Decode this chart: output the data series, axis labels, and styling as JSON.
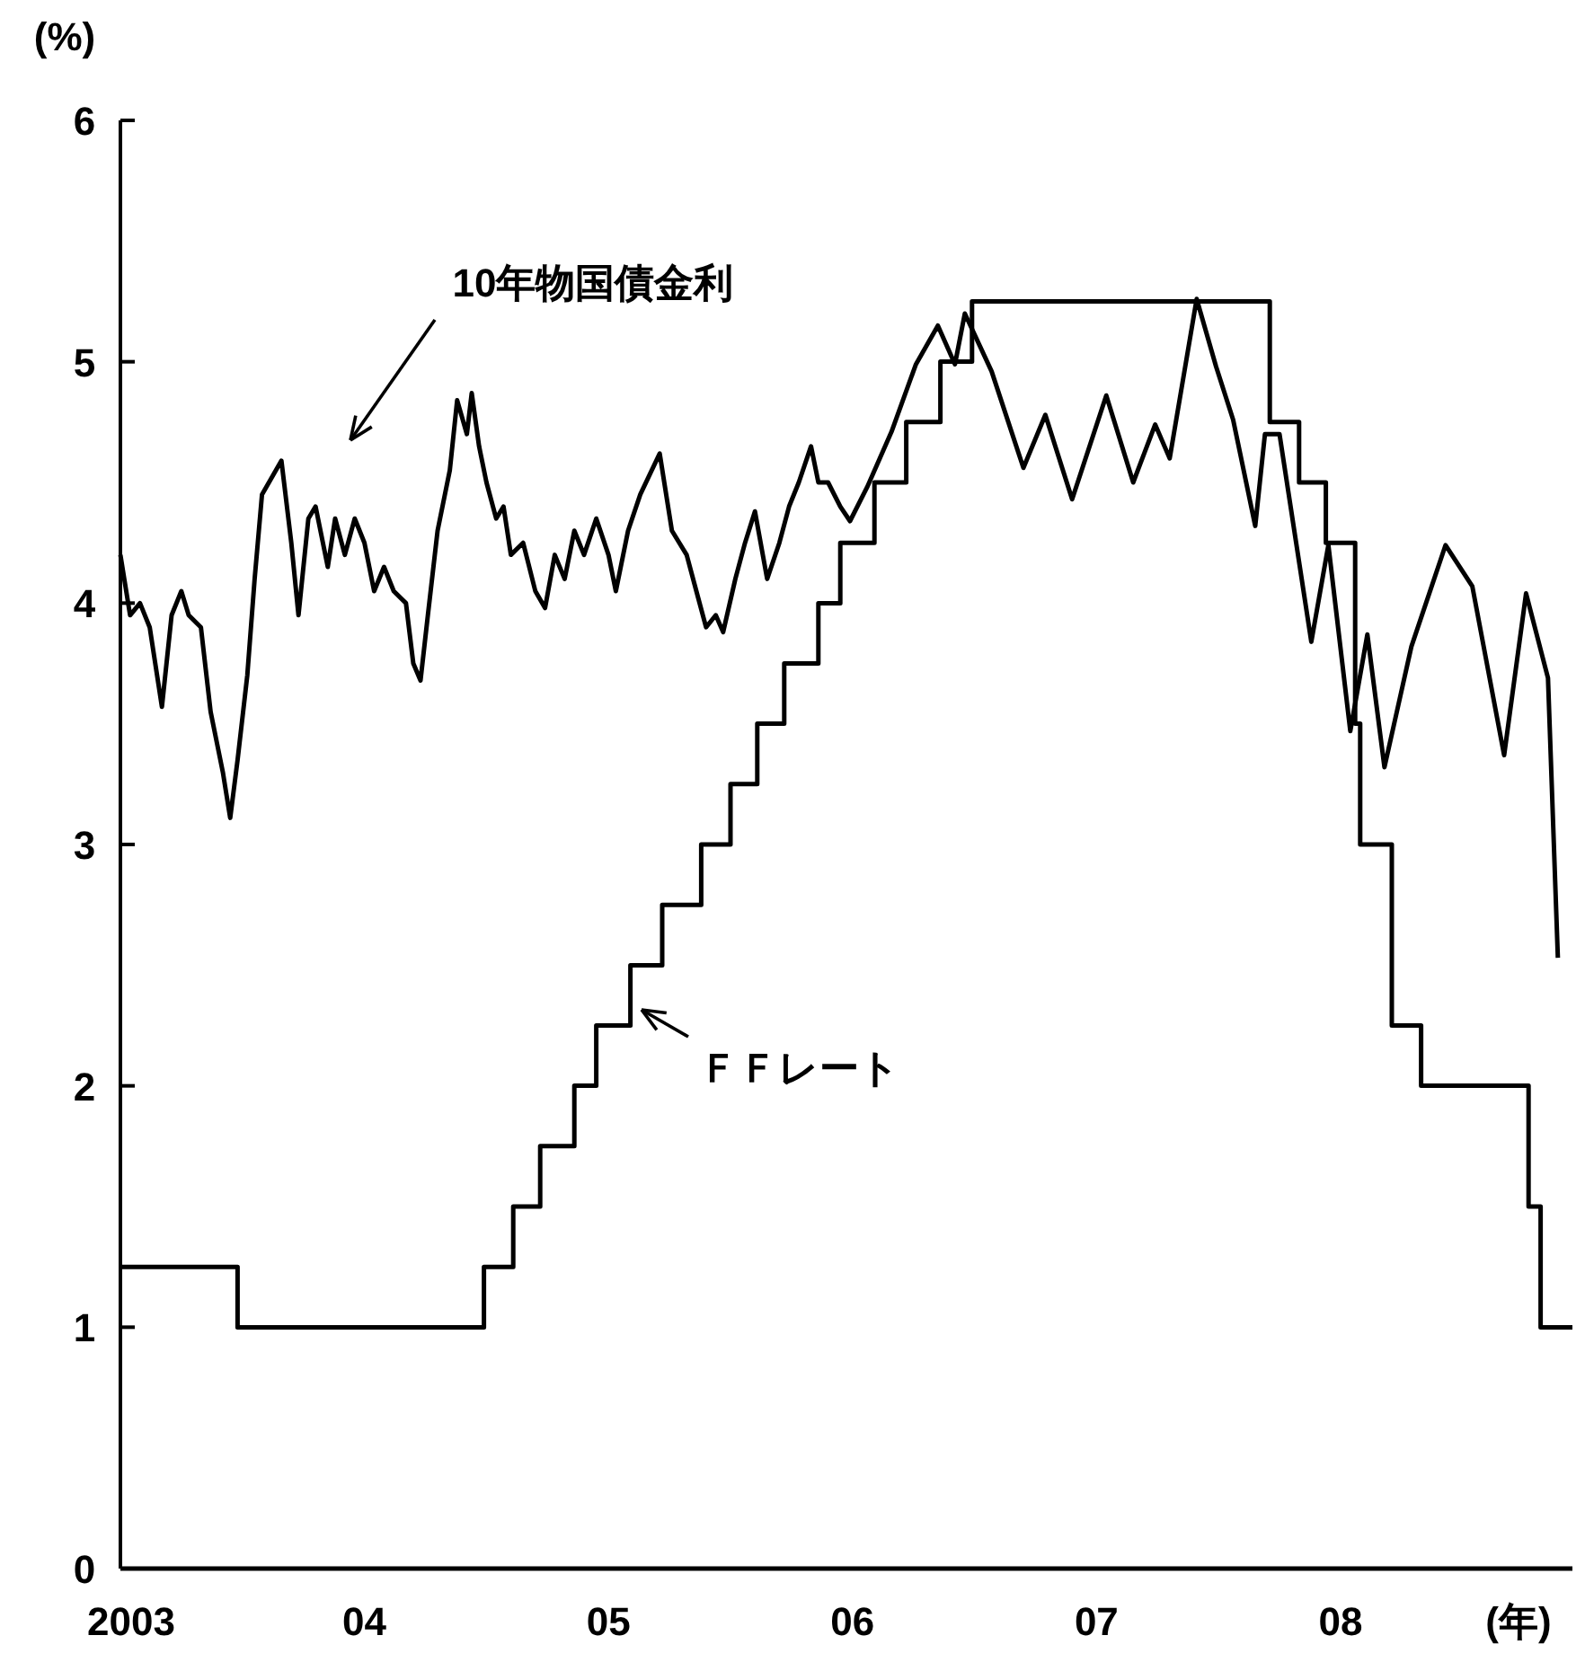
{
  "chart_data": {
    "type": "line",
    "xlabel": "(年)",
    "ylabel": "(%)",
    "xlim": [
      2003,
      2008.95
    ],
    "ylim": [
      0,
      6
    ],
    "yticks": [
      0,
      1,
      2,
      3,
      4,
      5,
      6
    ],
    "xticks": [
      {
        "value": 2003,
        "label": "2003"
      },
      {
        "value": 2004,
        "label": "04"
      },
      {
        "value": 2005,
        "label": "05"
      },
      {
        "value": 2006,
        "label": "06"
      },
      {
        "value": 2007,
        "label": "07"
      },
      {
        "value": 2008,
        "label": "08"
      }
    ],
    "grid": false,
    "marker": "none",
    "line_style": "solid",
    "series": [
      {
        "name": "10年物国債金利",
        "color": "#000000",
        "x": [
          2003.0,
          2003.04,
          2003.08,
          2003.12,
          2003.17,
          2003.21,
          2003.25,
          2003.28,
          2003.33,
          2003.37,
          2003.42,
          2003.45,
          2003.48,
          2003.52,
          2003.55,
          2003.58,
          2003.66,
          2003.7,
          2003.73,
          2003.77,
          2003.8,
          2003.85,
          2003.88,
          2003.92,
          2003.96,
          2004.0,
          2004.04,
          2004.08,
          2004.12,
          2004.17,
          2004.2,
          2004.23,
          2004.26,
          2004.3,
          2004.35,
          2004.38,
          2004.42,
          2004.44,
          2004.47,
          2004.5,
          2004.54,
          2004.57,
          2004.6,
          2004.65,
          2004.7,
          2004.74,
          2004.78,
          2004.82,
          2004.86,
          2004.9,
          2004.95,
          2005.0,
          2005.03,
          2005.08,
          2005.13,
          2005.21,
          2005.26,
          2005.32,
          2005.36,
          2005.4,
          2005.44,
          2005.47,
          2005.52,
          2005.56,
          2005.6,
          2005.65,
          2005.7,
          2005.74,
          2005.78,
          2005.83,
          2005.86,
          2005.9,
          2005.95,
          2005.99,
          2006.06,
          2006.16,
          2006.26,
          2006.35,
          2006.42,
          2006.46,
          2006.57,
          2006.7,
          2006.79,
          2006.9,
          2007.04,
          2007.15,
          2007.24,
          2007.3,
          2007.41,
          2007.49,
          2007.56,
          2007.65,
          2007.69,
          2007.75,
          2007.88,
          2007.95,
          2008.04,
          2008.11,
          2008.18,
          2008.29,
          2008.43,
          2008.54,
          2008.67,
          2008.76,
          2008.85,
          2008.89
        ],
        "values": [
          4.2,
          3.95,
          4.0,
          3.9,
          3.57,
          3.95,
          4.05,
          3.95,
          3.9,
          3.55,
          3.3,
          3.11,
          3.35,
          3.7,
          4.1,
          4.45,
          4.59,
          4.25,
          3.95,
          4.35,
          4.4,
          4.15,
          4.35,
          4.2,
          4.35,
          4.25,
          4.05,
          4.15,
          4.05,
          4.0,
          3.75,
          3.68,
          3.95,
          4.3,
          4.55,
          4.84,
          4.7,
          4.87,
          4.65,
          4.5,
          4.35,
          4.4,
          4.2,
          4.25,
          4.05,
          3.98,
          4.2,
          4.1,
          4.3,
          4.2,
          4.35,
          4.2,
          4.05,
          4.3,
          4.45,
          4.62,
          4.3,
          4.2,
          4.05,
          3.9,
          3.95,
          3.88,
          4.1,
          4.25,
          4.38,
          4.1,
          4.25,
          4.4,
          4.5,
          4.65,
          4.5,
          4.5,
          4.4,
          4.34,
          4.48,
          4.71,
          4.99,
          5.15,
          4.99,
          5.2,
          4.96,
          4.56,
          4.78,
          4.43,
          4.86,
          4.5,
          4.74,
          4.6,
          5.26,
          4.98,
          4.76,
          4.32,
          4.7,
          4.7,
          3.84,
          4.24,
          3.47,
          3.87,
          3.32,
          3.82,
          4.24,
          4.07,
          3.37,
          4.04,
          3.69,
          2.53
        ]
      },
      {
        "name": "ＦＦレート",
        "type": "step",
        "color": "#000000",
        "x": [
          2003.0,
          2003.48,
          2004.49,
          2004.61,
          2004.72,
          2004.86,
          2004.95,
          2005.09,
          2005.22,
          2005.38,
          2005.5,
          2005.61,
          2005.72,
          2005.86,
          2005.95,
          2006.09,
          2006.22,
          2006.36,
          2006.49,
          2007.71,
          2007.83,
          2007.94,
          2008.06,
          2008.08,
          2008.21,
          2008.33,
          2008.77,
          2008.82,
          2008.95
        ],
        "values": [
          1.25,
          1.0,
          1.25,
          1.5,
          1.75,
          2.0,
          2.25,
          2.5,
          2.75,
          3.0,
          3.25,
          3.5,
          3.75,
          4.0,
          4.25,
          4.5,
          4.75,
          5.0,
          5.25,
          4.75,
          4.5,
          4.25,
          3.5,
          3.0,
          2.25,
          2.0,
          1.5,
          1.0,
          1.0
        ]
      }
    ]
  }
}
